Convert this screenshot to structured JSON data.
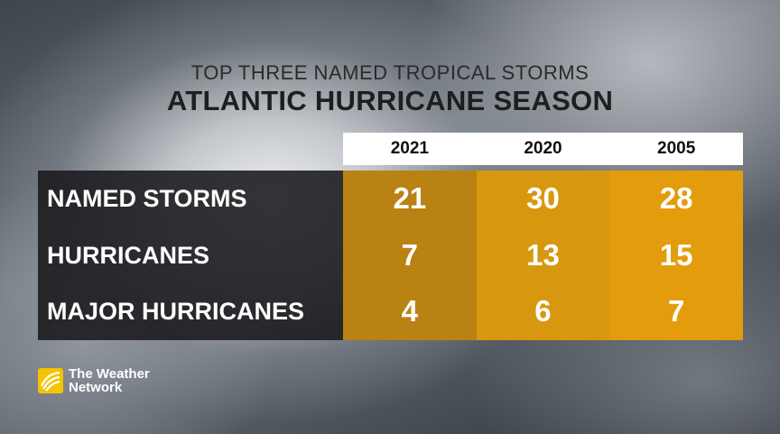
{
  "subtitle": "TOP THREE NAMED TROPICAL STORMS",
  "title": "ATLANTIC HURRICANE SEASON",
  "logo": {
    "line1": "The Weather",
    "line2": "Network"
  },
  "colors": {
    "header_bg": "#ffffff",
    "label_bg": "#1a1a1c",
    "col_2021": "#b98212",
    "col_2020": "#d7980f",
    "col_2005": "#e39c0b"
  },
  "chart_data": {
    "type": "table",
    "title": "ATLANTIC HURRICANE SEASON",
    "subtitle": "TOP THREE NAMED TROPICAL STORMS",
    "columns": [
      "2021",
      "2020",
      "2005"
    ],
    "rows": [
      {
        "label": "NAMED STORMS",
        "values": [
          "21",
          "30",
          "28"
        ]
      },
      {
        "label": "HURRICANES",
        "values": [
          "7",
          "13",
          "15"
        ]
      },
      {
        "label": "MAJOR HURRICANES",
        "values": [
          "4",
          "6",
          "7"
        ]
      }
    ]
  }
}
